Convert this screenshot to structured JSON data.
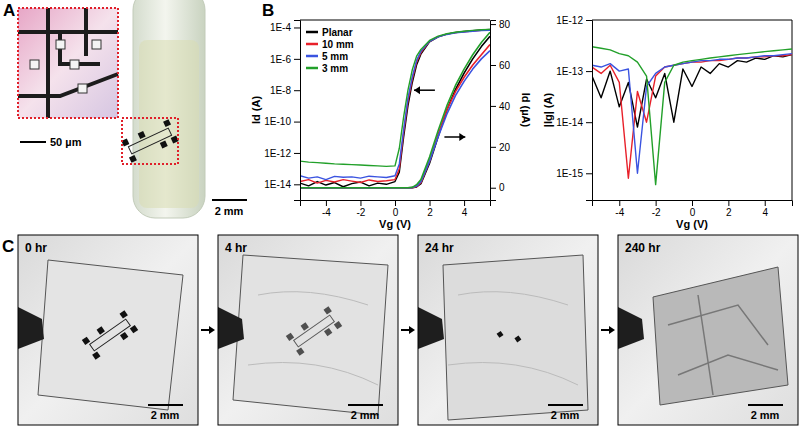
{
  "chart_data": [
    {
      "type": "line",
      "x": [
        -5.5,
        -5,
        -4.5,
        -4,
        -3.5,
        -3,
        -2.5,
        -2,
        -1.5,
        -1,
        -0.5,
        0,
        0.25,
        0.5,
        0.75,
        1,
        1.25,
        1.5,
        2,
        2.5,
        3,
        3.5,
        4,
        4.5,
        5,
        5.5
      ],
      "xlim": [
        -5.5,
        5.5
      ],
      "xticks": [
        -4,
        -2,
        0,
        2,
        4
      ],
      "xlabel": "Vg (V)",
      "ylabel": "Id (A)",
      "y2label": "Id (µA)",
      "log": "y",
      "ylim": [
        1e-15,
        0.0003
      ],
      "yticks": [
        {
          "value": 1e-14,
          "label": "1E-14"
        },
        {
          "value": 1e-12,
          "label": "1E-12"
        },
        {
          "value": 1e-10,
          "label": "1E-10"
        },
        {
          "value": 1e-08,
          "label": "1E-8"
        },
        {
          "value": 1e-06,
          "label": "1E-6"
        },
        {
          "value": 0.0001,
          "label": "1E-4"
        }
      ],
      "y2lim": [
        -6,
        82
      ],
      "y2ticks": [
        0,
        20,
        40,
        60,
        80
      ],
      "legend": "upper left",
      "series": [
        {
          "name": "Planar",
          "color": "#000000",
          "values": [
            1.2e-14,
            8e-15,
            1.5e-14,
            9e-15,
            1.3e-14,
            7e-15,
            1.1e-14,
            1.4e-14,
            8e-15,
            1.2e-14,
            1e-14,
            1.5e-14,
            6e-14,
            1e-11,
            1e-09,
            3e-08,
            4e-07,
            2e-06,
            1.2e-05,
            2.5e-05,
            3.8e-05,
            4.8e-05,
            5.6e-05,
            6.3e-05,
            6.9e-05,
            7.4e-05
          ]
        },
        {
          "name": "10 mm",
          "color": "#e8202a",
          "values": [
            1.5e-14,
            2e-14,
            1.2e-14,
            1.8e-14,
            1.4e-14,
            2e-14,
            1.6e-14,
            1.3e-14,
            1.9e-14,
            1.5e-14,
            1.7e-14,
            2e-14,
            1e-13,
            2e-11,
            2e-09,
            5e-08,
            6e-07,
            2.5e-06,
            1.3e-05,
            2.6e-05,
            3.8e-05,
            4.7e-05,
            5.4e-05,
            6e-05,
            6.5e-05,
            7e-05
          ]
        },
        {
          "name": "5 mm",
          "color": "#3a53e0",
          "values": [
            3.5e-14,
            2.5e-14,
            3e-14,
            2e-14,
            3.2e-14,
            2.8e-14,
            3e-14,
            2.5e-14,
            3.3e-14,
            3e-14,
            2.7e-14,
            3.5e-14,
            2e-13,
            3e-11,
            3e-09,
            7e-08,
            8e-07,
            3e-06,
            1.3e-05,
            2.5e-05,
            3.6e-05,
            4.5e-05,
            5.2e-05,
            5.8e-05,
            6.3e-05,
            6.7e-05
          ]
        },
        {
          "name": "3 mm",
          "color": "#22a02a",
          "values": [
            3e-13,
            2.6e-13,
            2.4e-13,
            2.2e-13,
            2e-13,
            1.9e-13,
            1.8e-13,
            1.7e-13,
            1.6e-13,
            1.5e-13,
            1.4e-13,
            1.5e-13,
            2e-12,
            2e-10,
            1e-08,
            2e-07,
            1.5e-06,
            4e-06,
            1.5e-05,
            2.8e-05,
            4e-05,
            5e-05,
            5.8e-05,
            6.5e-05,
            7.1e-05,
            7.6e-05
          ]
        },
        {
          "name": "Planar",
          "color": "#000000",
          "axis": "y2",
          "values": [
            0,
            0,
            0,
            0,
            0,
            0,
            0,
            0,
            0,
            0,
            0,
            0,
            0,
            0,
            0,
            0.03,
            0.4,
            2,
            12,
            25,
            38,
            48,
            56,
            63,
            69,
            74
          ]
        },
        {
          "name": "10 mm",
          "color": "#e8202a",
          "axis": "y2",
          "values": [
            0,
            0,
            0,
            0,
            0,
            0,
            0,
            0,
            0,
            0,
            0,
            0,
            0,
            0,
            0,
            0.05,
            0.6,
            2.5,
            13,
            26,
            38,
            47,
            54,
            60,
            65,
            70
          ]
        },
        {
          "name": "5 mm",
          "color": "#3a53e0",
          "axis": "y2",
          "values": [
            0,
            0,
            0,
            0,
            0,
            0,
            0,
            0,
            0,
            0,
            0,
            0,
            0,
            0,
            0,
            0.07,
            0.8,
            3,
            13,
            25,
            36,
            45,
            52,
            58,
            63,
            67
          ]
        },
        {
          "name": "3 mm",
          "color": "#22a02a",
          "axis": "y2",
          "values": [
            0,
            0,
            0,
            0,
            0,
            0,
            0,
            0,
            0,
            0,
            0,
            0,
            0,
            0,
            0,
            0.2,
            1.5,
            4,
            15,
            28,
            40,
            50,
            58,
            65,
            71,
            76
          ]
        }
      ]
    },
    {
      "type": "line",
      "x": [
        -5.5,
        -5,
        -4.5,
        -4,
        -3.5,
        -3,
        -2.5,
        -2,
        -1.5,
        -1,
        -0.5,
        0,
        0.5,
        1,
        1.5,
        2,
        2.5,
        3,
        3.5,
        4,
        4.5,
        5,
        5.5
      ],
      "xlim": [
        -5.5,
        5.5
      ],
      "xticks": [
        -4,
        -2,
        0,
        2,
        4
      ],
      "xlabel": "Vg (V)",
      "ylabel": "|Ig| (A)",
      "log": "y",
      "ylim": [
        3e-16,
        1e-12
      ],
      "yticks": [
        {
          "value": 1e-15,
          "label": "1E-15"
        },
        {
          "value": 1e-14,
          "label": "1E-14"
        },
        {
          "value": 1e-13,
          "label": "1E-13"
        },
        {
          "value": 1e-12,
          "label": "1E-12"
        }
      ],
      "series": [
        {
          "color": "#000000",
          "values": [
            8e-14,
            3e-14,
            1e-13,
            2e-14,
            6e-14,
            8e-15,
            7e-14,
            3e-14,
            9e-14,
            1e-14,
            1.1e-13,
            5e-14,
            1.2e-13,
            9e-14,
            1.4e-13,
            1.2e-13,
            1.6e-13,
            1.5e-13,
            1.8e-13,
            1.7e-13,
            2e-13,
            1.9e-13,
            2.1e-13
          ]
        },
        {
          "color": "#e8202a",
          "values": [
            1.2e-13,
            9e-14,
            1.3e-13,
            6e-14,
            8e-16,
            4e-14,
            1e-14,
            8e-14,
            1.2e-13,
            1.3e-13,
            1.4e-13,
            1.5e-13,
            1.5e-13,
            1.6e-13,
            1.6e-13,
            1.7e-13,
            1.8e-13,
            1.8e-13,
            1.9e-13,
            1.9e-13,
            2e-13,
            2e-13,
            2.1e-13
          ]
        },
        {
          "color": "#3a53e0",
          "values": [
            1.3e-13,
            1.2e-13,
            1.4e-13,
            1e-13,
            1.1e-13,
            1e-15,
            5e-14,
            9e-14,
            1.2e-13,
            1.3e-13,
            1.4e-13,
            1.5e-13,
            1.6e-13,
            1.6e-13,
            1.7e-13,
            1.7e-13,
            1.8e-13,
            1.8e-13,
            1.9e-13,
            2e-13,
            2e-13,
            2.1e-13,
            2.2e-13
          ]
        },
        {
          "color": "#22a02a",
          "values": [
            3e-13,
            2.8e-13,
            2.6e-13,
            2.2e-13,
            2e-13,
            1.5e-13,
            8e-14,
            6e-16,
            6e-14,
            1.3e-13,
            1.5e-13,
            1.6e-13,
            1.7e-13,
            1.8e-13,
            1.9e-13,
            2e-13,
            2.1e-13,
            2.2e-13,
            2.3e-13,
            2.4e-13,
            2.5e-13,
            2.6e-13,
            2.7e-13
          ]
        }
      ]
    }
  ],
  "panels": {
    "A": {
      "label": "A",
      "inset_scale": "50 µm",
      "scale": "2 mm"
    },
    "B": {
      "label": "B"
    },
    "C": {
      "label": "C",
      "frames": [
        {
          "time": "0 hr",
          "scale": "2 mm"
        },
        {
          "time": "4 hr",
          "scale": "2 mm"
        },
        {
          "time": "24 hr",
          "scale": "2 mm"
        },
        {
          "time": "240 hr",
          "scale": "2 mm"
        }
      ]
    }
  }
}
